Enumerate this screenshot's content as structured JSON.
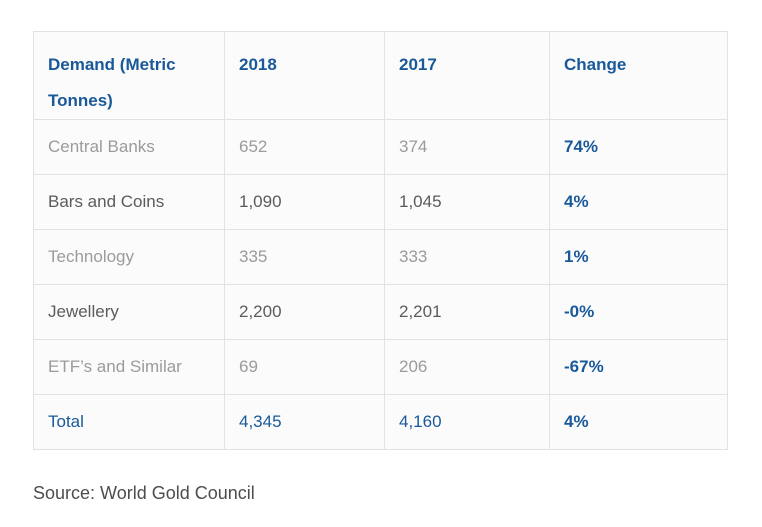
{
  "colors": {
    "accent_blue": "#19599a",
    "row_text_light": "#9b9b9b",
    "row_text_dark": "#5b5b5b",
    "source_text": "#4d4d4d",
    "cell_background": "#fbfbfb",
    "cell_border": "#e2e2e2"
  },
  "table": {
    "columns": [
      {
        "label": "Demand (Metric Tonnes)"
      },
      {
        "label": "2018"
      },
      {
        "label": "2017"
      },
      {
        "label": "Change"
      }
    ],
    "rows": [
      {
        "demand": "Central Banks",
        "y2018": "652",
        "y2017": "374",
        "change": "74%",
        "emphasis": "light"
      },
      {
        "demand": "Bars and Coins",
        "y2018": "1,090",
        "y2017": "1,045",
        "change": "4%",
        "emphasis": "dark"
      },
      {
        "demand": "Technology",
        "y2018": "335",
        "y2017": "333",
        "change": "1%",
        "emphasis": "light"
      },
      {
        "demand": "Jewellery",
        "y2018": "2,200",
        "y2017": "2,201",
        "change": "-0%",
        "emphasis": "dark"
      },
      {
        "demand": "ETF’s and Similar",
        "y2018": "69",
        "y2017": "206",
        "change": "-67%",
        "emphasis": "light"
      },
      {
        "demand": "Total",
        "y2018": "4,345",
        "y2017": "4,160",
        "change": "4%",
        "emphasis": "total"
      }
    ]
  },
  "source": "Source: World Gold Council",
  "chart_data": {
    "type": "table",
    "columns": [
      "Demand (Metric Tonnes)",
      "2018",
      "2017",
      "Change"
    ],
    "rows": [
      [
        "Central Banks",
        652,
        374,
        "74%"
      ],
      [
        "Bars and Coins",
        1090,
        1045,
        "4%"
      ],
      [
        "Technology",
        335,
        333,
        "1%"
      ],
      [
        "Jewellery",
        2200,
        2201,
        "-0%"
      ],
      [
        "ETF’s and Similar",
        69,
        206,
        "-67%"
      ],
      [
        "Total",
        4345,
        4160,
        "4%"
      ]
    ],
    "notes": "Change column and Total row rendered bold blue; source caption below table",
    "source": "Source: World Gold Council"
  }
}
